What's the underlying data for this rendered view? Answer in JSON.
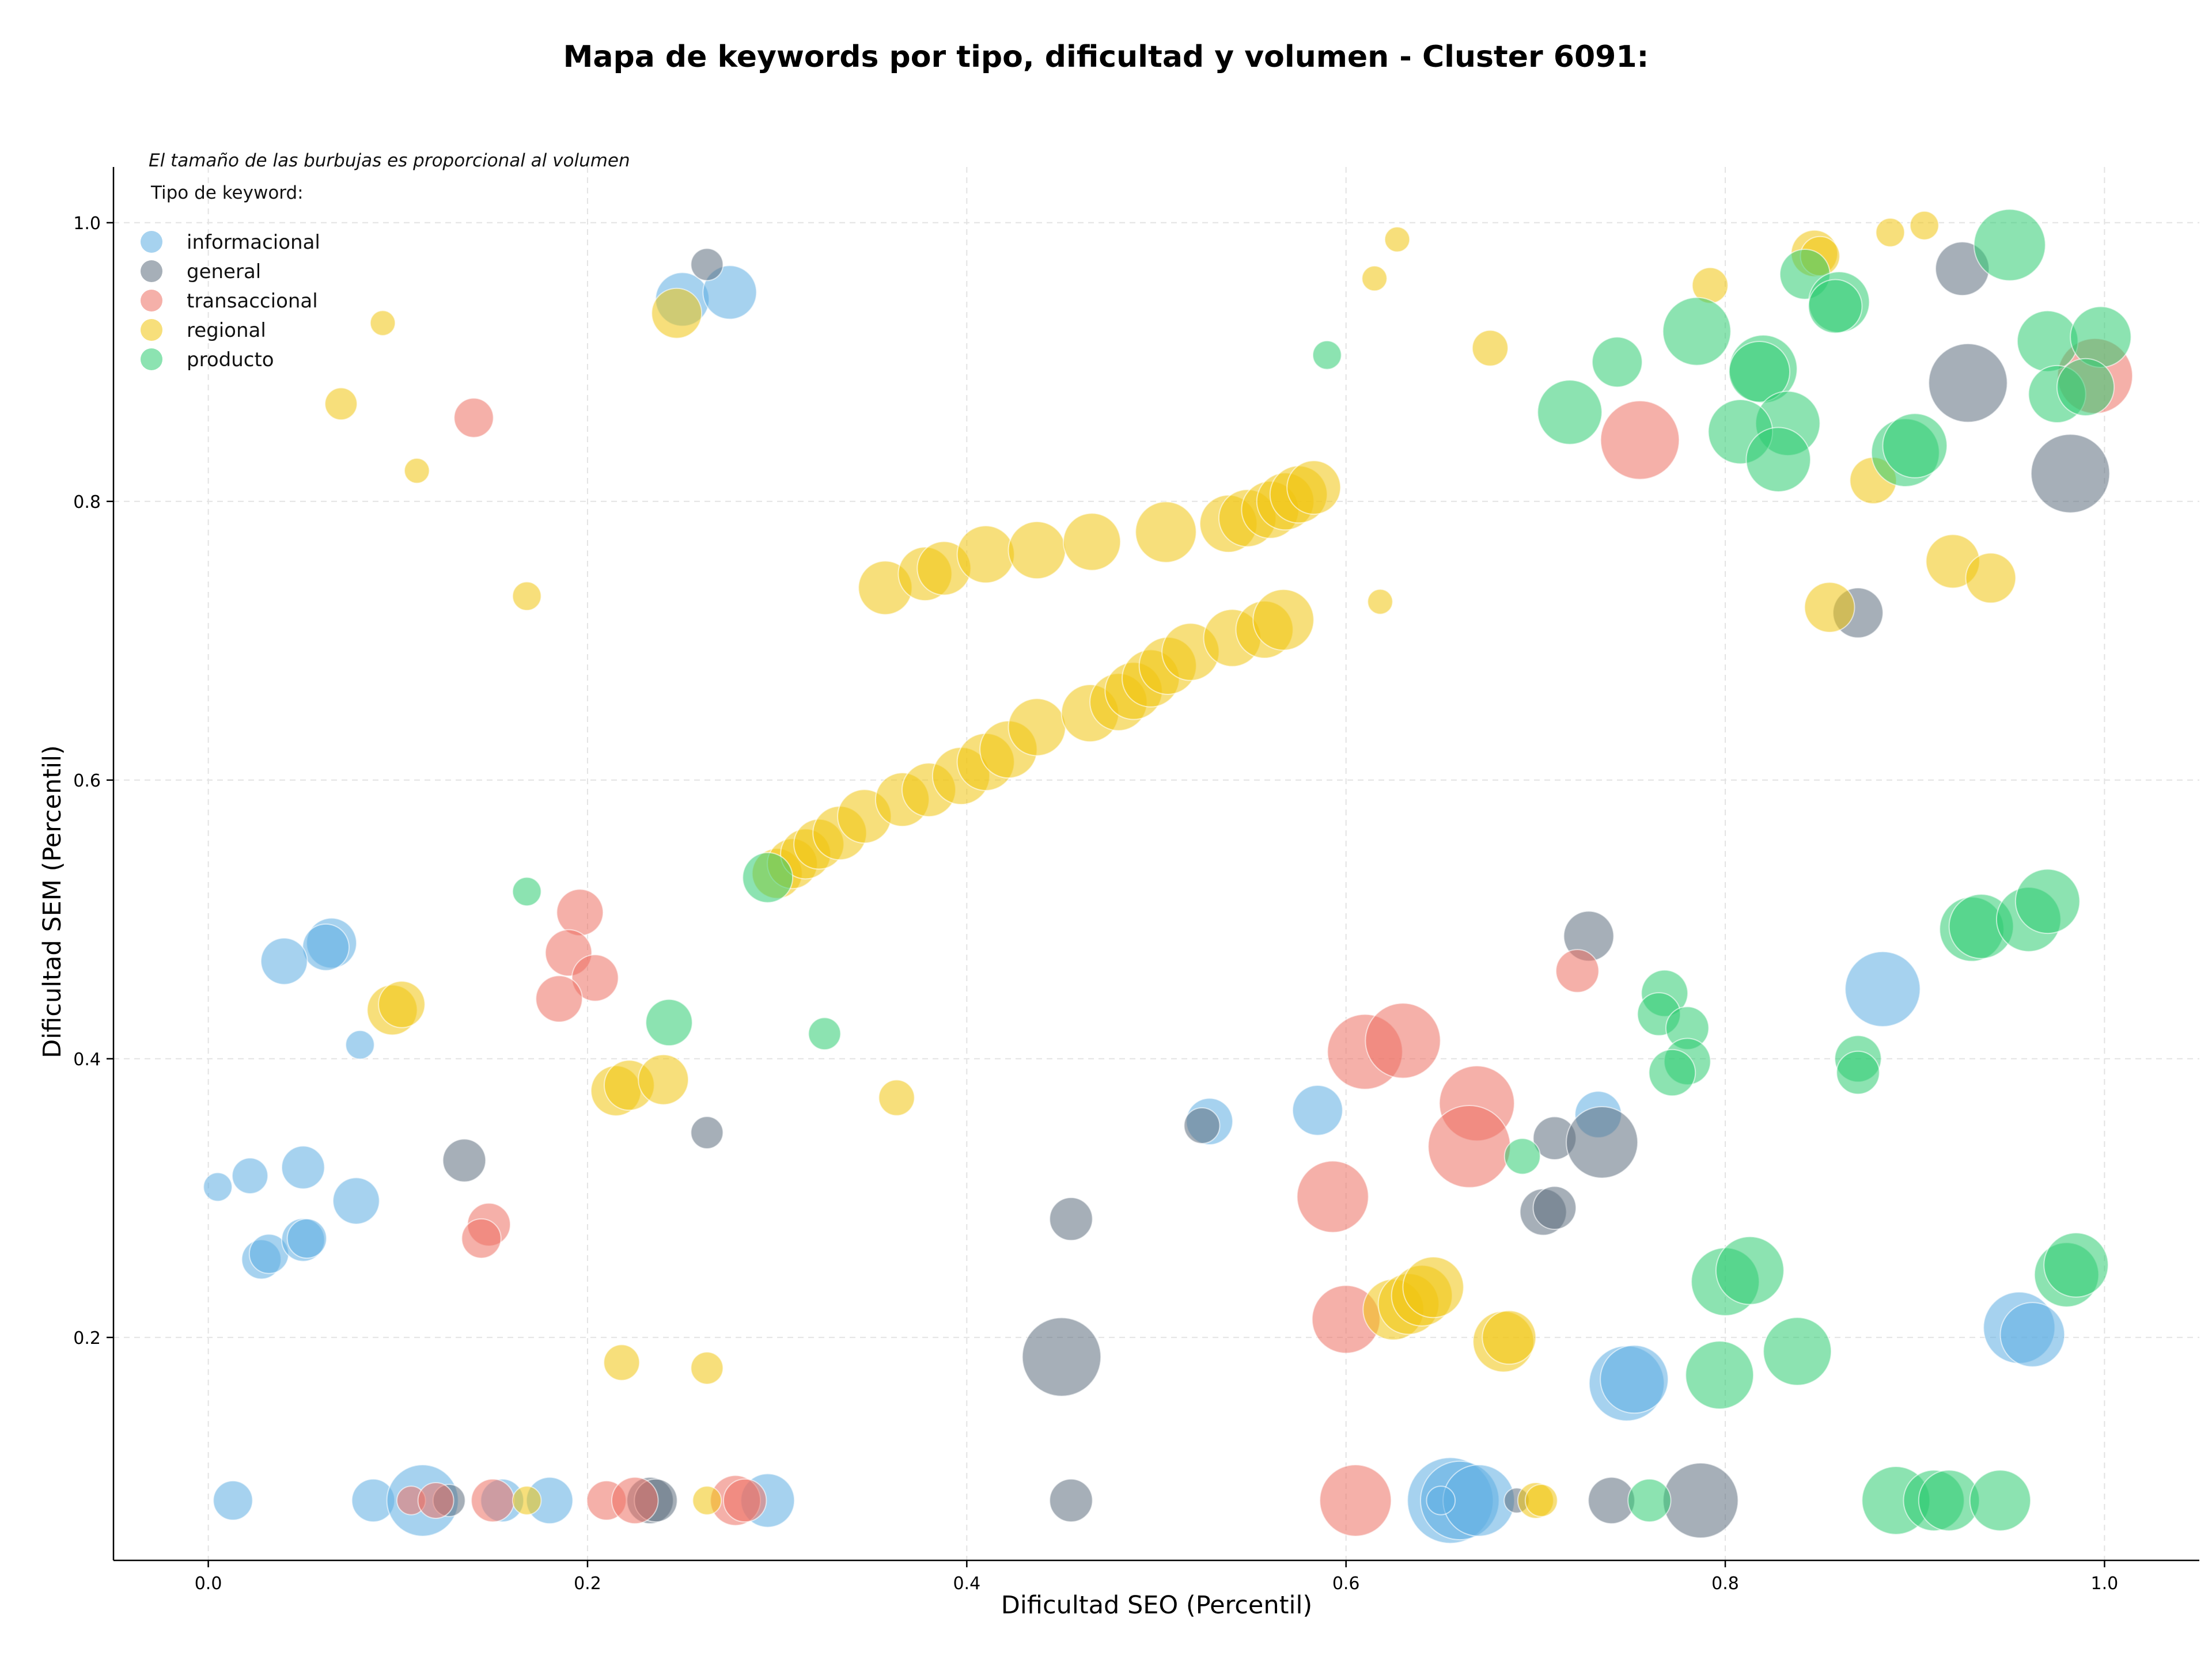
{
  "chart_data": {
    "type": "scatter",
    "title": "Mapa de keywords por tipo, dificultad y volumen - Cluster 6091:",
    "xlabel": "Dificultad SEO (Percentil)",
    "ylabel": "Dificultad SEM (Percentil)",
    "xlim": [
      -0.05,
      1.05
    ],
    "ylim": [
      0.04,
      1.04
    ],
    "xticks": [
      "0.0",
      "0.2",
      "0.4",
      "0.6",
      "0.8",
      "1.0"
    ],
    "xtick_values": [
      0,
      0.2,
      0.4,
      0.6,
      0.8,
      1.0
    ],
    "yticks": [
      "0.2",
      "0.4",
      "0.6",
      "0.8",
      "1.0"
    ],
    "ytick_values": [
      0.2,
      0.4,
      0.6,
      0.8,
      1.0
    ],
    "grid": true,
    "legend_note": "El tamaño de las burbujas es proporcional al volumen",
    "legend_title": "Tipo de keyword:",
    "legend_position": "top-left",
    "series": [
      {
        "name": "informacional",
        "color": "#5dade2",
        "points": [
          {
            "x": 0.25,
            "y": 0.945,
            "s": 30
          },
          {
            "x": 0.275,
            "y": 0.95,
            "s": 30
          },
          {
            "x": 0.065,
            "y": 0.483,
            "s": 28
          },
          {
            "x": 0.062,
            "y": 0.48,
            "s": 26
          },
          {
            "x": 0.04,
            "y": 0.47,
            "s": 26
          },
          {
            "x": 0.08,
            "y": 0.41,
            "s": 16
          },
          {
            "x": 0.005,
            "y": 0.308,
            "s": 16
          },
          {
            "x": 0.022,
            "y": 0.316,
            "s": 20
          },
          {
            "x": 0.05,
            "y": 0.322,
            "s": 24
          },
          {
            "x": 0.078,
            "y": 0.298,
            "s": 26
          },
          {
            "x": 0.028,
            "y": 0.256,
            "s": 22
          },
          {
            "x": 0.032,
            "y": 0.26,
            "s": 22
          },
          {
            "x": 0.05,
            "y": 0.27,
            "s": 24
          },
          {
            "x": 0.052,
            "y": 0.271,
            "s": 22
          },
          {
            "x": 0.013,
            "y": 0.083,
            "s": 22
          },
          {
            "x": 0.087,
            "y": 0.083,
            "s": 24
          },
          {
            "x": 0.113,
            "y": 0.083,
            "s": 40
          },
          {
            "x": 0.155,
            "y": 0.083,
            "s": 24
          },
          {
            "x": 0.18,
            "y": 0.083,
            "s": 26
          },
          {
            "x": 0.295,
            "y": 0.083,
            "s": 30
          },
          {
            "x": 0.528,
            "y": 0.355,
            "s": 26
          },
          {
            "x": 0.585,
            "y": 0.363,
            "s": 28
          },
          {
            "x": 0.655,
            "y": 0.083,
            "s": 48
          },
          {
            "x": 0.66,
            "y": 0.083,
            "s": 44
          },
          {
            "x": 0.67,
            "y": 0.083,
            "s": 40
          },
          {
            "x": 0.65,
            "y": 0.083,
            "s": 16
          },
          {
            "x": 0.733,
            "y": 0.36,
            "s": 26
          },
          {
            "x": 0.748,
            "y": 0.167,
            "s": 42
          },
          {
            "x": 0.752,
            "y": 0.17,
            "s": 38
          },
          {
            "x": 0.883,
            "y": 0.45,
            "s": 42
          },
          {
            "x": 0.955,
            "y": 0.207,
            "s": 40
          },
          {
            "x": 0.962,
            "y": 0.202,
            "s": 36
          }
        ]
      },
      {
        "name": "general",
        "color": "#5d6d7e",
        "points": [
          {
            "x": 0.263,
            "y": 0.97,
            "s": 18
          },
          {
            "x": 0.135,
            "y": 0.327,
            "s": 24
          },
          {
            "x": 0.263,
            "y": 0.347,
            "s": 18
          },
          {
            "x": 0.127,
            "y": 0.083,
            "s": 18
          },
          {
            "x": 0.233,
            "y": 0.083,
            "s": 26
          },
          {
            "x": 0.236,
            "y": 0.083,
            "s": 24
          },
          {
            "x": 0.455,
            "y": 0.285,
            "s": 24
          },
          {
            "x": 0.45,
            "y": 0.186,
            "s": 44
          },
          {
            "x": 0.455,
            "y": 0.083,
            "s": 24
          },
          {
            "x": 0.524,
            "y": 0.352,
            "s": 20
          },
          {
            "x": 0.71,
            "y": 0.343,
            "s": 24
          },
          {
            "x": 0.735,
            "y": 0.34,
            "s": 40
          },
          {
            "x": 0.728,
            "y": 0.488,
            "s": 28
          },
          {
            "x": 0.704,
            "y": 0.29,
            "s": 26
          },
          {
            "x": 0.71,
            "y": 0.293,
            "s": 24
          },
          {
            "x": 0.74,
            "y": 0.083,
            "s": 26
          },
          {
            "x": 0.787,
            "y": 0.083,
            "s": 42
          },
          {
            "x": 0.69,
            "y": 0.083,
            "s": 14
          },
          {
            "x": 0.87,
            "y": 0.72,
            "s": 28
          },
          {
            "x": 0.925,
            "y": 0.967,
            "s": 30
          },
          {
            "x": 0.928,
            "y": 0.885,
            "s": 44
          },
          {
            "x": 0.982,
            "y": 0.82,
            "s": 44
          }
        ]
      },
      {
        "name": "transaccional",
        "color": "#ec7063",
        "points": [
          {
            "x": 0.14,
            "y": 0.86,
            "s": 22
          },
          {
            "x": 0.196,
            "y": 0.505,
            "s": 26
          },
          {
            "x": 0.19,
            "y": 0.476,
            "s": 26
          },
          {
            "x": 0.204,
            "y": 0.458,
            "s": 26
          },
          {
            "x": 0.185,
            "y": 0.443,
            "s": 26
          },
          {
            "x": 0.148,
            "y": 0.281,
            "s": 24
          },
          {
            "x": 0.144,
            "y": 0.271,
            "s": 22
          },
          {
            "x": 0.107,
            "y": 0.083,
            "s": 16
          },
          {
            "x": 0.12,
            "y": 0.083,
            "s": 20
          },
          {
            "x": 0.15,
            "y": 0.083,
            "s": 24
          },
          {
            "x": 0.21,
            "y": 0.083,
            "s": 22
          },
          {
            "x": 0.225,
            "y": 0.083,
            "s": 26
          },
          {
            "x": 0.278,
            "y": 0.083,
            "s": 28
          },
          {
            "x": 0.283,
            "y": 0.083,
            "s": 24
          },
          {
            "x": 0.61,
            "y": 0.405,
            "s": 42
          },
          {
            "x": 0.63,
            "y": 0.413,
            "s": 42
          },
          {
            "x": 0.669,
            "y": 0.368,
            "s": 42
          },
          {
            "x": 0.665,
            "y": 0.337,
            "s": 46
          },
          {
            "x": 0.593,
            "y": 0.301,
            "s": 40
          },
          {
            "x": 0.6,
            "y": 0.213,
            "s": 38
          },
          {
            "x": 0.605,
            "y": 0.083,
            "s": 40
          },
          {
            "x": 0.722,
            "y": 0.463,
            "s": 24
          },
          {
            "x": 0.755,
            "y": 0.844,
            "s": 44
          },
          {
            "x": 0.995,
            "y": 0.89,
            "s": 42
          }
        ]
      },
      {
        "name": "regional",
        "color": "#f1c40f",
        "points": [
          {
            "x": 0.092,
            "y": 0.928,
            "s": 14
          },
          {
            "x": 0.07,
            "y": 0.87,
            "s": 18
          },
          {
            "x": 0.11,
            "y": 0.822,
            "s": 14
          },
          {
            "x": 0.168,
            "y": 0.732,
            "s": 16
          },
          {
            "x": 0.097,
            "y": 0.435,
            "s": 28
          },
          {
            "x": 0.102,
            "y": 0.439,
            "s": 26
          },
          {
            "x": 0.215,
            "y": 0.377,
            "s": 28
          },
          {
            "x": 0.222,
            "y": 0.381,
            "s": 28
          },
          {
            "x": 0.24,
            "y": 0.385,
            "s": 28
          },
          {
            "x": 0.218,
            "y": 0.182,
            "s": 20
          },
          {
            "x": 0.263,
            "y": 0.178,
            "s": 18
          },
          {
            "x": 0.168,
            "y": 0.083,
            "s": 16
          },
          {
            "x": 0.263,
            "y": 0.083,
            "s": 16
          },
          {
            "x": 0.247,
            "y": 0.935,
            "s": 28
          },
          {
            "x": 0.363,
            "y": 0.372,
            "s": 20
          },
          {
            "x": 0.615,
            "y": 0.96,
            "s": 14
          },
          {
            "x": 0.627,
            "y": 0.988,
            "s": 14
          },
          {
            "x": 0.618,
            "y": 0.728,
            "s": 14
          },
          {
            "x": 0.676,
            "y": 0.91,
            "s": 20
          },
          {
            "x": 0.792,
            "y": 0.955,
            "s": 20
          },
          {
            "x": 0.847,
            "y": 0.978,
            "s": 26
          },
          {
            "x": 0.85,
            "y": 0.976,
            "s": 22
          },
          {
            "x": 0.887,
            "y": 0.993,
            "s": 16
          },
          {
            "x": 0.905,
            "y": 0.998,
            "s": 16
          },
          {
            "x": 0.878,
            "y": 0.815,
            "s": 26
          },
          {
            "x": 0.92,
            "y": 0.757,
            "s": 30
          },
          {
            "x": 0.94,
            "y": 0.745,
            "s": 28
          },
          {
            "x": 0.855,
            "y": 0.724,
            "s": 28
          },
          {
            "x": 0.357,
            "y": 0.738,
            "s": 30
          },
          {
            "x": 0.378,
            "y": 0.748,
            "s": 30
          },
          {
            "x": 0.388,
            "y": 0.752,
            "s": 30
          },
          {
            "x": 0.41,
            "y": 0.762,
            "s": 32
          },
          {
            "x": 0.437,
            "y": 0.765,
            "s": 32
          },
          {
            "x": 0.466,
            "y": 0.771,
            "s": 32
          },
          {
            "x": 0.505,
            "y": 0.778,
            "s": 34
          },
          {
            "x": 0.538,
            "y": 0.784,
            "s": 32
          },
          {
            "x": 0.548,
            "y": 0.788,
            "s": 32
          },
          {
            "x": 0.56,
            "y": 0.794,
            "s": 32
          },
          {
            "x": 0.568,
            "y": 0.8,
            "s": 32
          },
          {
            "x": 0.575,
            "y": 0.805,
            "s": 32
          },
          {
            "x": 0.583,
            "y": 0.81,
            "s": 30
          },
          {
            "x": 0.3,
            "y": 0.533,
            "s": 28
          },
          {
            "x": 0.308,
            "y": 0.54,
            "s": 28
          },
          {
            "x": 0.315,
            "y": 0.547,
            "s": 28
          },
          {
            "x": 0.322,
            "y": 0.554,
            "s": 28
          },
          {
            "x": 0.333,
            "y": 0.562,
            "s": 30
          },
          {
            "x": 0.346,
            "y": 0.574,
            "s": 30
          },
          {
            "x": 0.366,
            "y": 0.586,
            "s": 30
          },
          {
            "x": 0.38,
            "y": 0.593,
            "s": 30
          },
          {
            "x": 0.397,
            "y": 0.603,
            "s": 32
          },
          {
            "x": 0.41,
            "y": 0.613,
            "s": 32
          },
          {
            "x": 0.422,
            "y": 0.622,
            "s": 32
          },
          {
            "x": 0.437,
            "y": 0.638,
            "s": 32
          },
          {
            "x": 0.465,
            "y": 0.648,
            "s": 32
          },
          {
            "x": 0.48,
            "y": 0.656,
            "s": 32
          },
          {
            "x": 0.488,
            "y": 0.664,
            "s": 32
          },
          {
            "x": 0.497,
            "y": 0.673,
            "s": 32
          },
          {
            "x": 0.506,
            "y": 0.682,
            "s": 32
          },
          {
            "x": 0.518,
            "y": 0.692,
            "s": 32
          },
          {
            "x": 0.54,
            "y": 0.702,
            "s": 32
          },
          {
            "x": 0.557,
            "y": 0.708,
            "s": 32
          },
          {
            "x": 0.567,
            "y": 0.715,
            "s": 34
          },
          {
            "x": 0.625,
            "y": 0.22,
            "s": 34
          },
          {
            "x": 0.633,
            "y": 0.224,
            "s": 34
          },
          {
            "x": 0.64,
            "y": 0.23,
            "s": 34
          },
          {
            "x": 0.646,
            "y": 0.236,
            "s": 34
          },
          {
            "x": 0.683,
            "y": 0.197,
            "s": 34
          },
          {
            "x": 0.686,
            "y": 0.2,
            "s": 30
          },
          {
            "x": 0.7,
            "y": 0.083,
            "s": 20
          },
          {
            "x": 0.703,
            "y": 0.083,
            "s": 18
          }
        ]
      },
      {
        "name": "producto",
        "color": "#2ecc71",
        "points": [
          {
            "x": 0.59,
            "y": 0.905,
            "s": 16
          },
          {
            "x": 0.168,
            "y": 0.52,
            "s": 16
          },
          {
            "x": 0.243,
            "y": 0.426,
            "s": 26
          },
          {
            "x": 0.325,
            "y": 0.418,
            "s": 18
          },
          {
            "x": 0.295,
            "y": 0.53,
            "s": 28
          },
          {
            "x": 0.718,
            "y": 0.864,
            "s": 36
          },
          {
            "x": 0.743,
            "y": 0.9,
            "s": 28
          },
          {
            "x": 0.785,
            "y": 0.922,
            "s": 38
          },
          {
            "x": 0.82,
            "y": 0.895,
            "s": 38
          },
          {
            "x": 0.818,
            "y": 0.893,
            "s": 34
          },
          {
            "x": 0.833,
            "y": 0.856,
            "s": 36
          },
          {
            "x": 0.808,
            "y": 0.85,
            "s": 36
          },
          {
            "x": 0.828,
            "y": 0.83,
            "s": 36
          },
          {
            "x": 0.842,
            "y": 0.963,
            "s": 28
          },
          {
            "x": 0.86,
            "y": 0.943,
            "s": 34
          },
          {
            "x": 0.858,
            "y": 0.94,
            "s": 30
          },
          {
            "x": 0.895,
            "y": 0.835,
            "s": 38
          },
          {
            "x": 0.9,
            "y": 0.84,
            "s": 36
          },
          {
            "x": 0.95,
            "y": 0.984,
            "s": 40
          },
          {
            "x": 0.97,
            "y": 0.915,
            "s": 34
          },
          {
            "x": 0.998,
            "y": 0.918,
            "s": 34
          },
          {
            "x": 0.975,
            "y": 0.877,
            "s": 32
          },
          {
            "x": 0.99,
            "y": 0.882,
            "s": 32
          },
          {
            "x": 0.768,
            "y": 0.447,
            "s": 26
          },
          {
            "x": 0.765,
            "y": 0.432,
            "s": 24
          },
          {
            "x": 0.78,
            "y": 0.422,
            "s": 24
          },
          {
            "x": 0.78,
            "y": 0.398,
            "s": 26
          },
          {
            "x": 0.772,
            "y": 0.39,
            "s": 26
          },
          {
            "x": 0.87,
            "y": 0.4,
            "s": 26
          },
          {
            "x": 0.87,
            "y": 0.39,
            "s": 24
          },
          {
            "x": 0.693,
            "y": 0.33,
            "s": 20
          },
          {
            "x": 0.8,
            "y": 0.24,
            "s": 38
          },
          {
            "x": 0.813,
            "y": 0.248,
            "s": 38
          },
          {
            "x": 0.838,
            "y": 0.19,
            "s": 38
          },
          {
            "x": 0.797,
            "y": 0.173,
            "s": 38
          },
          {
            "x": 0.93,
            "y": 0.493,
            "s": 36
          },
          {
            "x": 0.935,
            "y": 0.495,
            "s": 36
          },
          {
            "x": 0.96,
            "y": 0.5,
            "s": 36
          },
          {
            "x": 0.97,
            "y": 0.513,
            "s": 36
          },
          {
            "x": 0.98,
            "y": 0.245,
            "s": 36
          },
          {
            "x": 0.985,
            "y": 0.252,
            "s": 36
          },
          {
            "x": 0.76,
            "y": 0.083,
            "s": 24
          },
          {
            "x": 0.89,
            "y": 0.083,
            "s": 38
          },
          {
            "x": 0.91,
            "y": 0.083,
            "s": 34
          },
          {
            "x": 0.918,
            "y": 0.083,
            "s": 34
          },
          {
            "x": 0.945,
            "y": 0.083,
            "s": 34
          }
        ]
      }
    ]
  }
}
